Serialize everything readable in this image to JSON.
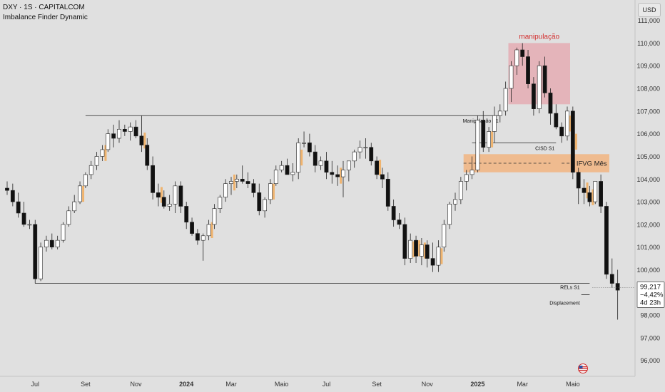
{
  "header": {
    "symbol_line": "DXY · 1S · CAPITALCOM",
    "indicator_line": "Imbalance Finder Dynamic"
  },
  "currency_button": "USD",
  "colors": {
    "background": "#e0e0e0",
    "bull_candle": "#ffffff",
    "bear_candle": "#111111",
    "imbalance": "#efb36e",
    "zone_pink": "#e6a5ae",
    "zone_orange": "#f2b27a",
    "annotation_red": "#d32f2f"
  },
  "chart_data": {
    "type": "candlestick",
    "ylim": [
      95.3,
      111.9
    ],
    "y_ticks": [
      "111,000",
      "110,000",
      "109,000",
      "108,000",
      "107,000",
      "106,000",
      "105,000",
      "104,000",
      "103,000",
      "102,000",
      "101,000",
      "100,000",
      "98,000",
      "97,000",
      "96,000"
    ],
    "y_tick_values": [
      111,
      110,
      109,
      108,
      107,
      106,
      105,
      104,
      103,
      102,
      101,
      100,
      98,
      97,
      96
    ],
    "x_ticks": [
      {
        "label": "Jul",
        "index": 5,
        "bold": false
      },
      {
        "label": "Set",
        "index": 14,
        "bold": false
      },
      {
        "label": "Nov",
        "index": 23,
        "bold": false
      },
      {
        "label": "2024",
        "index": 32,
        "bold": true
      },
      {
        "label": "Mar",
        "index": 40,
        "bold": false
      },
      {
        "label": "Maio",
        "index": 49,
        "bold": false
      },
      {
        "label": "Jul",
        "index": 57,
        "bold": false
      },
      {
        "label": "Set",
        "index": 66,
        "bold": false
      },
      {
        "label": "Nov",
        "index": 75,
        "bold": false
      },
      {
        "label": "2025",
        "index": 84,
        "bold": true
      },
      {
        "label": "Mar",
        "index": 92,
        "bold": false
      },
      {
        "label": "Maio",
        "index": 101,
        "bold": false
      }
    ],
    "candles": [
      [
        103.6,
        103.9,
        103.3,
        103.5
      ],
      [
        103.5,
        103.8,
        102.8,
        103.0
      ],
      [
        103.0,
        103.4,
        102.3,
        102.5
      ],
      [
        102.5,
        103.0,
        101.9,
        102.0
      ],
      [
        102.0,
        102.2,
        101.8,
        102.0
      ],
      [
        102.0,
        102.2,
        99.4,
        99.6
      ],
      [
        99.6,
        101.2,
        99.5,
        101.0
      ],
      [
        101.0,
        101.5,
        100.8,
        101.3
      ],
      [
        101.3,
        101.6,
        100.9,
        101.0
      ],
      [
        101.0,
        101.5,
        100.9,
        101.3
      ],
      [
        101.3,
        102.1,
        101.2,
        102.0
      ],
      [
        102.0,
        102.8,
        101.9,
        102.6
      ],
      [
        102.6,
        103.3,
        102.5,
        103.0
      ],
      [
        103.0,
        103.9,
        102.9,
        103.7
      ],
      [
        103.7,
        104.3,
        103.6,
        104.2
      ],
      [
        104.2,
        104.8,
        104.0,
        104.6
      ],
      [
        104.6,
        105.2,
        104.4,
        105.0
      ],
      [
        105.0,
        105.5,
        104.8,
        105.3
      ],
      [
        105.3,
        106.2,
        105.2,
        106.0
      ],
      [
        106.0,
        106.4,
        105.4,
        105.8
      ],
      [
        105.8,
        106.6,
        105.6,
        106.2
      ],
      [
        106.2,
        106.4,
        105.9,
        106.1
      ],
      [
        106.1,
        106.5,
        105.7,
        106.3
      ],
      [
        106.3,
        106.6,
        105.8,
        105.9
      ],
      [
        105.9,
        106.8,
        105.2,
        105.5
      ],
      [
        105.5,
        105.8,
        104.4,
        104.6
      ],
      [
        104.6,
        105.0,
        103.1,
        103.4
      ],
      [
        103.4,
        103.8,
        102.8,
        103.2
      ],
      [
        103.2,
        103.5,
        102.7,
        102.8
      ],
      [
        102.8,
        103.3,
        102.6,
        102.9
      ],
      [
        102.9,
        103.9,
        102.5,
        103.7
      ],
      [
        103.7,
        103.9,
        102.5,
        102.8
      ],
      [
        102.8,
        103.0,
        101.8,
        102.1
      ],
      [
        102.1,
        102.3,
        101.5,
        101.6
      ],
      [
        101.6,
        101.8,
        101.1,
        101.3
      ],
      [
        101.3,
        101.6,
        100.4,
        101.5
      ],
      [
        101.5,
        102.2,
        101.3,
        102.0
      ],
      [
        102.0,
        102.9,
        101.8,
        102.7
      ],
      [
        102.7,
        103.3,
        102.5,
        103.2
      ],
      [
        103.2,
        104.0,
        103.0,
        103.8
      ],
      [
        103.8,
        104.1,
        103.3,
        103.9
      ],
      [
        103.9,
        104.2,
        103.6,
        104.0
      ],
      [
        104.0,
        104.6,
        103.8,
        103.9
      ],
      [
        103.9,
        104.3,
        103.6,
        103.8
      ],
      [
        103.8,
        104.0,
        103.2,
        103.4
      ],
      [
        103.4,
        103.8,
        102.4,
        102.6
      ],
      [
        102.6,
        103.2,
        102.3,
        103.1
      ],
      [
        103.1,
        104.0,
        102.9,
        103.8
      ],
      [
        103.8,
        104.6,
        103.7,
        104.4
      ],
      [
        104.4,
        104.8,
        104.3,
        104.6
      ],
      [
        104.6,
        104.9,
        104.2,
        104.2
      ],
      [
        104.2,
        104.7,
        103.9,
        104.3
      ],
      [
        104.3,
        105.8,
        104.0,
        105.6
      ],
      [
        105.6,
        106.1,
        105.4,
        105.6
      ],
      [
        105.6,
        106.0,
        105.0,
        105.2
      ],
      [
        105.2,
        105.5,
        104.3,
        104.6
      ],
      [
        104.6,
        105.0,
        104.4,
        104.8
      ],
      [
        104.8,
        105.2,
        104.0,
        104.3
      ],
      [
        104.3,
        104.8,
        103.8,
        104.2
      ],
      [
        104.2,
        104.6,
        103.7,
        104.1
      ],
      [
        104.1,
        104.8,
        103.2,
        104.4
      ],
      [
        104.4,
        104.8,
        103.9,
        104.8
      ],
      [
        104.8,
        105.3,
        104.5,
        105.2
      ],
      [
        105.2,
        105.7,
        104.9,
        105.4
      ],
      [
        105.4,
        105.8,
        104.9,
        105.4
      ],
      [
        105.4,
        105.6,
        104.6,
        104.8
      ],
      [
        104.8,
        105.0,
        104.0,
        104.2
      ],
      [
        104.2,
        104.5,
        103.6,
        104.0
      ],
      [
        104.0,
        104.3,
        102.6,
        102.8
      ],
      [
        102.8,
        103.1,
        101.9,
        102.2
      ],
      [
        102.2,
        102.5,
        101.8,
        102.0
      ],
      [
        102.0,
        102.3,
        100.2,
        100.5
      ],
      [
        100.5,
        101.6,
        100.3,
        101.3
      ],
      [
        101.3,
        101.5,
        100.3,
        100.6
      ],
      [
        100.6,
        101.4,
        100.2,
        101.1
      ],
      [
        101.1,
        101.3,
        100.1,
        100.5
      ],
      [
        100.5,
        101.2,
        99.9,
        100.2
      ],
      [
        100.2,
        101.3,
        99.9,
        101.0
      ],
      [
        101.0,
        102.2,
        100.8,
        102.0
      ],
      [
        102.0,
        103.0,
        101.8,
        102.9
      ],
      [
        102.9,
        103.4,
        102.6,
        103.1
      ],
      [
        103.1,
        104.1,
        102.9,
        103.9
      ],
      [
        103.9,
        104.4,
        103.5,
        104.2
      ],
      [
        104.2,
        105.0,
        104.0,
        104.4
      ],
      [
        104.4,
        106.8,
        104.3,
        106.6
      ],
      [
        106.6,
        107.0,
        105.2,
        105.4
      ],
      [
        105.4,
        106.3,
        105.2,
        106.1
      ],
      [
        106.1,
        107.2,
        105.6,
        106.8
      ],
      [
        106.8,
        107.3,
        106.5,
        107.0
      ],
      [
        107.0,
        108.3,
        106.8,
        108.0
      ],
      [
        108.0,
        109.2,
        107.4,
        109.0
      ],
      [
        109.0,
        109.8,
        108.6,
        109.7
      ],
      [
        109.7,
        110.0,
        109.0,
        109.4
      ],
      [
        109.4,
        109.7,
        108.0,
        108.2
      ],
      [
        108.2,
        108.5,
        106.8,
        107.1
      ],
      [
        107.1,
        109.2,
        106.9,
        109.0
      ],
      [
        109.0,
        109.4,
        107.6,
        107.8
      ],
      [
        107.8,
        108.0,
        106.4,
        106.9
      ],
      [
        106.9,
        107.3,
        106.2,
        106.3
      ],
      [
        106.3,
        106.5,
        105.6,
        105.9
      ],
      [
        105.9,
        107.2,
        105.7,
        107.0
      ],
      [
        107.0,
        107.2,
        104.0,
        104.3
      ],
      [
        104.3,
        104.5,
        102.9,
        103.6
      ],
      [
        103.6,
        104.0,
        102.9,
        103.4
      ],
      [
        103.4,
        103.7,
        102.8,
        103.0
      ],
      [
        103.0,
        103.9,
        102.9,
        103.9
      ],
      [
        103.9,
        104.2,
        102.5,
        102.8
      ],
      [
        102.8,
        103.0,
        99.6,
        99.8
      ],
      [
        99.8,
        100.5,
        99.2,
        99.4
      ],
      [
        99.4,
        100.0,
        97.8,
        99.1
      ]
    ],
    "imbalance_candles": [
      13,
      17,
      24,
      27,
      36,
      40,
      47,
      52,
      59,
      66,
      72,
      73,
      74,
      77,
      86,
      100,
      101,
      103,
      104
    ],
    "levels": [
      {
        "name": "Manipulação S1",
        "price": 106.8,
        "from": 14,
        "to": 88
      },
      {
        "name": "CISD S1",
        "price": 105.6,
        "from": 91,
        "to": 98
      },
      {
        "name": "RELs S1",
        "price": 99.4,
        "from": 5,
        "to": 104
      },
      {
        "name": "Displacement",
        "price": 99.15,
        "from": 103,
        "to": 104
      }
    ],
    "zones": [
      {
        "name": "manipulação",
        "top": 110.0,
        "bottom": 107.3,
        "from": 90,
        "to": 100,
        "color": "#e6a5ae",
        "label_color": "#d32f2f"
      },
      {
        "name": "IFVG Mês",
        "top": 105.1,
        "bottom": 104.3,
        "from": 82,
        "to": 107,
        "color": "#f2b27a",
        "label_color": "#222222"
      }
    ],
    "annotations": {
      "manipulacao_label": "manipulação",
      "manip_s1_label": "Manipulação S1",
      "cisd_label": "CISD S1",
      "ifvg_label": "IFVG Mês",
      "rels_label": "RELs S1",
      "displacement_label": "Displacement"
    },
    "last_price": {
      "value": "99,217",
      "change": "−4,42%",
      "countdown": "4d 23h",
      "price": 99.217
    }
  }
}
